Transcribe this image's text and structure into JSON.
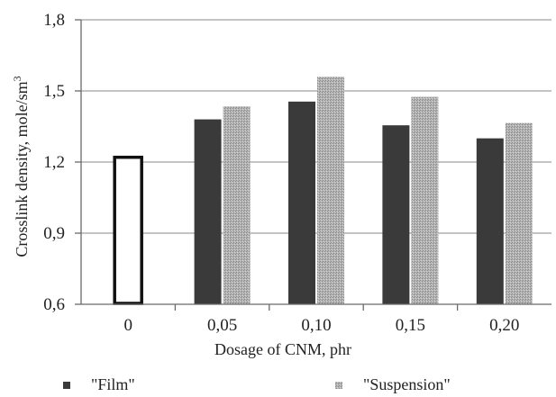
{
  "chart_data": {
    "type": "bar",
    "title": "",
    "xlabel": "Dosage of CNM, phr",
    "ylabel": "Crosslink density, mole/sm",
    "ylabel_superscript": "3",
    "categories": [
      "0",
      "0,05",
      "0,10",
      "0,15",
      "0,20"
    ],
    "yticks": [
      "0,6",
      "0,9",
      "1,2",
      "1,5",
      "1,8"
    ],
    "ytick_values": [
      0.6,
      0.9,
      1.2,
      1.5,
      1.8
    ],
    "ylim": [
      0.6,
      1.8
    ],
    "grid": true,
    "legend_position": "bottom",
    "control": {
      "category": "0",
      "value": 1.22,
      "style": "outline"
    },
    "series": [
      {
        "name": "\"Film\"",
        "color": "#3a3a3a",
        "values": [
          null,
          1.38,
          1.455,
          1.355,
          1.3
        ]
      },
      {
        "name": "\"Suspension\"",
        "color": "#a8a8a8",
        "values": [
          null,
          1.435,
          1.56,
          1.475,
          1.365
        ]
      }
    ]
  }
}
